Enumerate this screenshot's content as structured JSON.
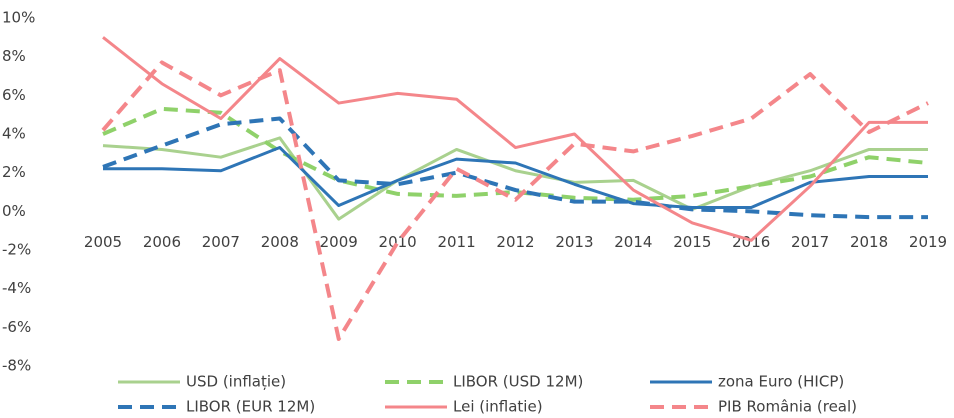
{
  "chart_data": {
    "type": "line",
    "categories": [
      "2005",
      "2006",
      "2007",
      "2008",
      "2009",
      "2010",
      "2011",
      "2012",
      "2013",
      "2014",
      "2015",
      "2016",
      "2017",
      "2018",
      "2019"
    ],
    "series": [
      {
        "name": "USD (inflație)",
        "color": "#a9d18e",
        "dash": false,
        "values": [
          3.4,
          3.2,
          2.8,
          3.8,
          -0.4,
          1.6,
          3.2,
          2.1,
          1.5,
          1.6,
          0.1,
          1.3,
          2.1,
          3.2,
          3.2
        ]
      },
      {
        "name": "LIBOR (USD 12M)",
        "color": "#8fd16a",
        "dash": true,
        "values": [
          4.0,
          5.3,
          5.1,
          3.1,
          1.6,
          0.9,
          0.8,
          1.0,
          0.7,
          0.6,
          0.8,
          1.3,
          1.8,
          2.8,
          2.5
        ]
      },
      {
        "name": "zona Euro (HICP)",
        "color": "#2e75b6",
        "dash": false,
        "values": [
          2.2,
          2.2,
          2.1,
          3.3,
          0.3,
          1.6,
          2.7,
          2.5,
          1.4,
          0.4,
          0.2,
          0.2,
          1.5,
          1.8,
          1.8
        ]
      },
      {
        "name": "LIBOR (EUR 12M)",
        "color": "#2e75b6",
        "dash": true,
        "values": [
          2.3,
          3.4,
          4.5,
          4.8,
          1.6,
          1.4,
          2.0,
          1.1,
          0.5,
          0.5,
          0.1,
          0.0,
          -0.2,
          -0.3,
          -0.3
        ]
      },
      {
        "name": "Lei (inflatie)",
        "color": "#f4868a",
        "dash": false,
        "values": [
          9.0,
          6.6,
          4.8,
          7.9,
          5.6,
          6.1,
          5.8,
          3.3,
          4.0,
          1.1,
          -0.6,
          -1.5,
          1.3,
          4.6,
          4.6
        ]
      },
      {
        "name": "PIB România (real)",
        "color": "#f4868a",
        "dash": true,
        "values": [
          4.2,
          7.7,
          6.0,
          7.3,
          -6.6,
          -1.6,
          2.2,
          0.6,
          3.5,
          3.1,
          3.9,
          4.8,
          7.1,
          4.1,
          5.6
        ]
      }
    ],
    "ylim": [
      -8,
      10
    ],
    "yticks": [
      {
        "value": -8,
        "label": "-8%"
      },
      {
        "value": -6,
        "label": "-6%"
      },
      {
        "value": -4,
        "label": "-4%"
      },
      {
        "value": -2,
        "label": "-2%"
      },
      {
        "value": 0,
        "label": "0%"
      },
      {
        "value": 2,
        "label": "2%"
      },
      {
        "value": 4,
        "label": "4%"
      },
      {
        "value": 6,
        "label": "6%"
      },
      {
        "value": 8,
        "label": "8%"
      },
      {
        "value": 10,
        "label": "10%"
      }
    ],
    "grid": false,
    "legend": "bottom"
  }
}
